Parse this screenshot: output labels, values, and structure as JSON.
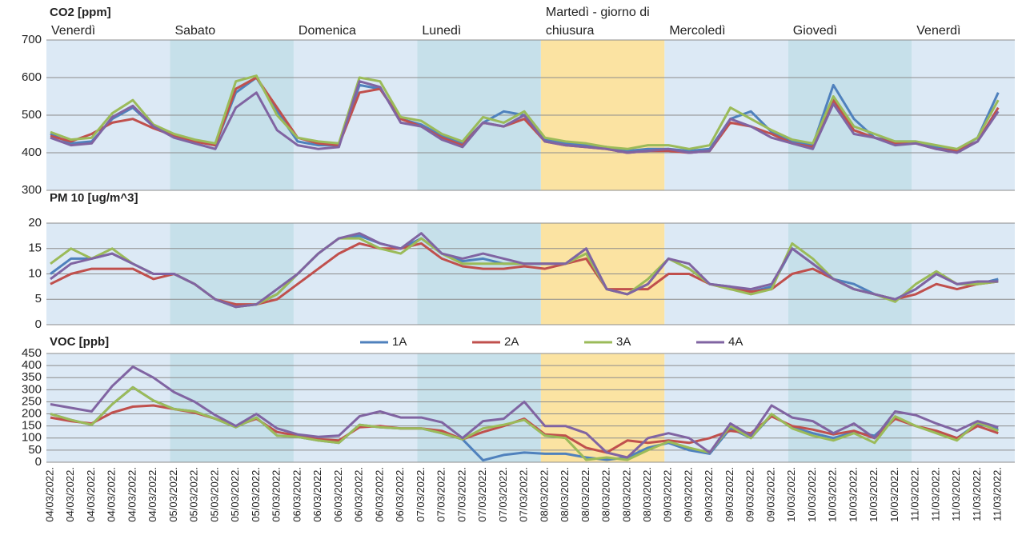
{
  "chart_data": [
    {
      "type": "line",
      "title": "CO2 [ppm]",
      "ylim": [
        300,
        700
      ],
      "yticks": [
        300,
        400,
        500,
        600,
        700
      ],
      "grid": true,
      "days": [
        {
          "name": "Venerdì",
          "color": "#dce9f5"
        },
        {
          "name": "Sabato",
          "color": "#c6e0ea"
        },
        {
          "name": "Domenica",
          "color": "#dce9f5"
        },
        {
          "name": "Lunedì",
          "color": "#c6e0ea"
        },
        {
          "name": "Martedì - giorno di chiusura",
          "color": "#fbe3a2"
        },
        {
          "name": "Mercoledì",
          "color": "#dce9f5"
        },
        {
          "name": "Giovedì",
          "color": "#c6e0ea"
        },
        {
          "name": "Venerdì",
          "color": "#dce9f5"
        }
      ],
      "series": [
        {
          "color": "#4f81bd",
          "values": [
            450,
            425,
            430,
            490,
            520,
            470,
            445,
            430,
            420,
            560,
            600,
            510,
            430,
            420,
            420,
            580,
            570,
            490,
            475,
            445,
            425,
            480,
            510,
            500,
            435,
            425,
            420,
            415,
            405,
            410,
            410,
            405,
            410,
            490,
            510,
            455,
            430,
            420,
            580,
            490,
            440,
            430,
            430,
            415,
            405,
            440,
            560
          ]
        },
        {
          "color": "#c0504d",
          "values": [
            445,
            430,
            450,
            480,
            490,
            465,
            445,
            430,
            420,
            570,
            600,
            520,
            440,
            425,
            420,
            560,
            570,
            490,
            470,
            440,
            420,
            480,
            470,
            490,
            430,
            420,
            415,
            410,
            400,
            405,
            405,
            400,
            405,
            480,
            470,
            450,
            425,
            415,
            540,
            460,
            440,
            425,
            425,
            410,
            405,
            430,
            520
          ]
        },
        {
          "color": "#9bbb59",
          "values": [
            455,
            435,
            440,
            505,
            540,
            475,
            450,
            435,
            425,
            590,
            605,
            500,
            440,
            430,
            425,
            600,
            590,
            495,
            485,
            450,
            430,
            495,
            480,
            510,
            440,
            430,
            425,
            415,
            410,
            420,
            420,
            410,
            420,
            520,
            490,
            460,
            435,
            425,
            550,
            470,
            450,
            430,
            430,
            420,
            410,
            440,
            540
          ]
        },
        {
          "color": "#8064a2",
          "values": [
            440,
            420,
            425,
            495,
            525,
            470,
            440,
            425,
            410,
            520,
            560,
            460,
            420,
            410,
            415,
            590,
            575,
            480,
            470,
            435,
            415,
            480,
            470,
            500,
            430,
            420,
            415,
            410,
            400,
            405,
            410,
            400,
            405,
            490,
            470,
            440,
            425,
            410,
            530,
            450,
            440,
            420,
            425,
            410,
            400,
            430,
            510
          ]
        }
      ]
    },
    {
      "type": "line",
      "title": "PM 10 [ug/m^3]",
      "ylim": [
        0,
        20
      ],
      "yticks": [
        0,
        5,
        10,
        15,
        20
      ],
      "grid": true,
      "series": [
        {
          "color": "#4f81bd",
          "values": [
            10,
            13,
            13,
            14,
            12,
            10,
            10,
            8,
            5,
            3.5,
            4,
            6,
            10,
            14,
            17,
            17.5,
            16,
            15,
            17,
            14,
            12.5,
            13,
            12,
            12,
            12,
            12,
            15,
            7,
            6,
            8,
            13,
            11,
            8,
            7.5,
            6.5,
            7.5,
            15,
            12,
            9,
            8,
            6,
            5,
            7,
            10,
            8,
            8,
            9
          ]
        },
        {
          "color": "#c0504d",
          "values": [
            8,
            10,
            11,
            11,
            11,
            9,
            10,
            8,
            5,
            4,
            4,
            5,
            8,
            11,
            14,
            16,
            15,
            15,
            16,
            13,
            11.5,
            11,
            11,
            11.5,
            11,
            12,
            13,
            7,
            7,
            7,
            10,
            10,
            8,
            7,
            6.5,
            7,
            10,
            11,
            9,
            7,
            6,
            5,
            6,
            8,
            7,
            8,
            8.5
          ]
        },
        {
          "color": "#9bbb59",
          "values": [
            12,
            15,
            13,
            15,
            12,
            10,
            10,
            8,
            5,
            3.5,
            4,
            6,
            10,
            14,
            17,
            17,
            15,
            14,
            17,
            14,
            12,
            12,
            12,
            12,
            12,
            12,
            14,
            7,
            6,
            9,
            13,
            11,
            8,
            7,
            6,
            7,
            16,
            13,
            9,
            7,
            6,
            4.5,
            8,
            10.5,
            8,
            8,
            8.5
          ]
        },
        {
          "color": "#8064a2",
          "values": [
            9,
            12,
            13,
            14,
            12,
            10,
            10,
            8,
            5,
            3.5,
            4,
            7,
            10,
            14,
            17,
            18,
            16,
            15,
            18,
            14,
            13,
            14,
            13,
            12,
            12,
            12,
            15,
            7,
            6,
            8,
            13,
            12,
            8,
            7.5,
            7,
            8,
            15,
            12,
            9,
            7,
            6,
            5,
            7,
            10,
            8,
            8.5,
            8.5
          ]
        }
      ]
    },
    {
      "type": "line",
      "title": "VOC [ppb]",
      "ylim": [
        0,
        450
      ],
      "yticks": [
        0,
        50,
        100,
        150,
        200,
        250,
        300,
        350,
        400,
        450
      ],
      "grid": true,
      "legend": "top",
      "categories": [
        "04/03/2022.",
        "04/03/2022.",
        "04/03/2022.",
        "04/03/2022.",
        "04/03/2022.",
        "04/03/2022.",
        "05/03/2022.",
        "05/03/2022.",
        "05/03/2022.",
        "05/03/2022.",
        "05/03/2022.",
        "05/03/2022.",
        "06/03/2022.",
        "06/03/2022.",
        "06/03/2022.",
        "06/03/2022.",
        "06/03/2022.",
        "06/03/2022.",
        "07/03/2022.",
        "07/03/2022.",
        "07/03/2022.",
        "07/03/2022.",
        "07/03/2022.",
        "07/03/2022.",
        "08/03/2022.",
        "08/03/2022.",
        "08/03/2022.",
        "08/03/2022.",
        "08/03/2022.",
        "08/03/2022.",
        "09/03/2022.",
        "09/03/2022.",
        "09/03/2022.",
        "09/03/2022.",
        "09/03/2022.",
        "09/03/2022.",
        "10/03/2022.",
        "10/03/2022.",
        "10/03/2022.",
        "10/03/2022.",
        "10/03/2022.",
        "10/03/2022.",
        "11/03/2022.",
        "11/03/2022.",
        "11/03/2022.",
        "11/03/2022.",
        "11/03/2022."
      ],
      "series": [
        {
          "name": "1A",
          "color": "#4f81bd",
          "values": [
            200,
            175,
            155,
            240,
            310,
            255,
            220,
            210,
            180,
            145,
            185,
            110,
            105,
            90,
            80,
            155,
            145,
            140,
            140,
            120,
            95,
            8,
            30,
            40,
            35,
            35,
            20,
            10,
            20,
            60,
            80,
            50,
            35,
            140,
            100,
            195,
            145,
            120,
            100,
            125,
            110,
            185,
            150,
            125,
            100,
            160,
            135
          ]
        },
        {
          "name": "2A",
          "color": "#c0504d",
          "values": [
            185,
            170,
            160,
            205,
            230,
            235,
            220,
            205,
            180,
            150,
            180,
            125,
            110,
            95,
            90,
            145,
            150,
            140,
            140,
            130,
            95,
            125,
            150,
            180,
            115,
            110,
            60,
            40,
            90,
            80,
            90,
            80,
            100,
            130,
            120,
            190,
            150,
            135,
            115,
            130,
            100,
            180,
            150,
            130,
            100,
            150,
            120
          ]
        },
        {
          "name": "3A",
          "color": "#9bbb59",
          "values": [
            200,
            175,
            155,
            240,
            310,
            255,
            220,
            210,
            180,
            145,
            185,
            110,
            105,
            90,
            80,
            155,
            145,
            140,
            140,
            120,
            95,
            140,
            155,
            175,
            110,
            100,
            10,
            20,
            10,
            50,
            85,
            60,
            40,
            150,
            100,
            200,
            140,
            110,
            90,
            120,
            80,
            190,
            150,
            120,
            90,
            165,
            130
          ]
        },
        {
          "name": "4A",
          "color": "#8064a2",
          "values": [
            240,
            225,
            210,
            315,
            395,
            350,
            290,
            250,
            195,
            150,
            200,
            140,
            115,
            105,
            110,
            190,
            210,
            185,
            185,
            165,
            100,
            170,
            180,
            250,
            150,
            150,
            120,
            40,
            20,
            100,
            120,
            100,
            40,
            160,
            110,
            235,
            185,
            170,
            120,
            160,
            100,
            210,
            195,
            160,
            130,
            170,
            145
          ]
        }
      ]
    }
  ]
}
